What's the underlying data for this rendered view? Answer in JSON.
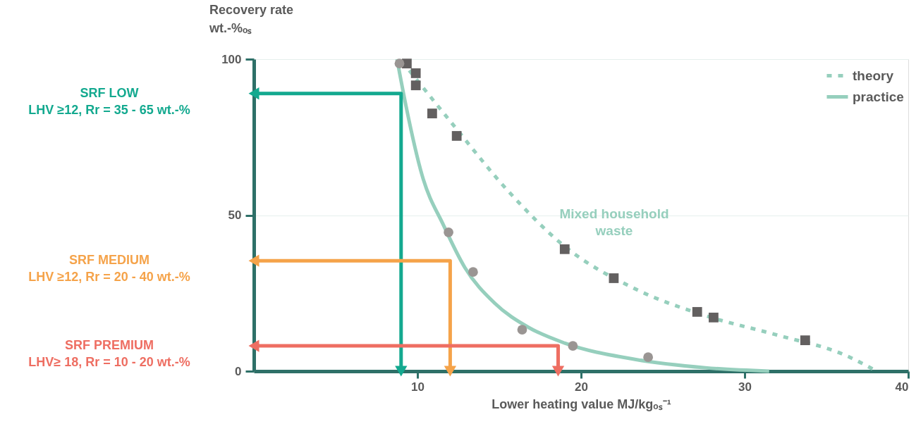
{
  "chart_data": {
    "type": "line",
    "xlabel": "Lower heating value MJ/kgₒₛ⁻¹",
    "ylabel": "Recovery rate\nwt.-%ₒₛ",
    "xlim": [
      0,
      40
    ],
    "xticks": [
      10,
      20,
      30,
      40
    ],
    "ylim": [
      0,
      100
    ],
    "yticks": [
      0,
      50,
      100
    ],
    "grid": "y",
    "legend": "top right",
    "series": [
      {
        "name": "theory",
        "line_style": "dotted",
        "color": "#96cfbd",
        "x": [
          9.5,
          12.1,
          15.5,
          19.0,
          23.3,
          27.6,
          31.9,
          36.2,
          37.9
        ],
        "values": [
          96.4,
          79.5,
          58,
          40,
          26.4,
          17.8,
          11.7,
          5,
          0.5
        ]
      },
      {
        "name": "practice",
        "line_style": "solid",
        "color": "#96cfbd",
        "x": [
          8.75,
          9.3,
          10.3,
          11.6,
          12.9,
          14.7,
          16.8,
          19.0,
          23.3,
          27.6,
          31.5
        ],
        "values": [
          100,
          85,
          62.5,
          46.7,
          33.2,
          21.9,
          14,
          9,
          3.8,
          1.1,
          0
        ]
      },
      {
        "name": "SRF LOW\nLHV ≥12, Rr = 35 - 65 wt.-%",
        "marker": "triangle",
        "line_style": "solid",
        "color": "#13a98f",
        "x": [
          0,
          9,
          9
        ],
        "values": [
          89,
          89,
          0
        ]
      },
      {
        "name": "SRF MEDIUM\nLHV ≥12, Rr = 20 - 40 wt.-%",
        "marker": "triangle",
        "line_style": "solid",
        "color": "#f5a34a",
        "x": [
          0,
          12,
          12
        ],
        "values": [
          35.4,
          35.4,
          0
        ]
      },
      {
        "name": "SRF PREMIUM\nLHV≥ 18, Rr = 10 - 20 wt.-%",
        "marker": "triangle",
        "line_style": "solid",
        "color": "#ee6e62",
        "x": [
          0,
          18.6,
          18.6
        ],
        "values": [
          8.1,
          8.1,
          0
        ]
      },
      {
        "type": "scatter",
        "marker": "square",
        "color": "#636060",
        "x": [
          9.35,
          9.9,
          9.9,
          10.9,
          12.4,
          19.0,
          22.0,
          27.1,
          28.1,
          33.7
        ],
        "values": [
          98.6,
          95.5,
          91.6,
          82.6,
          75.4,
          39.1,
          29.8,
          19.0,
          17.2,
          9.9
        ]
      },
      {
        "type": "scatter",
        "marker": "circle",
        "color": "#9a9593",
        "x": [
          8.9,
          11.9,
          13.4,
          16.4,
          19.5,
          24.1
        ],
        "values": [
          98.6,
          44.5,
          31.8,
          13.3,
          8.1,
          4.5
        ]
      }
    ],
    "annotations": [
      "Mixed household\nwaste"
    ]
  }
}
